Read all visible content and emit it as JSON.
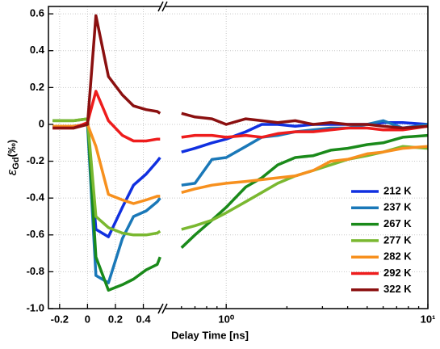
{
  "chart_data": {
    "type": "line",
    "xlabel": "Delay Time [ns]",
    "ylabel": {
      "symbol": "ε",
      "subscript": "Gd",
      "unit": "(‰)"
    },
    "xlim": [
      -0.28,
      0.53
    ],
    "xscale": "linear",
    "xticks": [
      -0.2,
      0,
      0.2,
      0.4
    ],
    "x2lim": [
      0.5,
      10
    ],
    "x2scale": "log",
    "x2ticks": [
      {
        "value": 1,
        "label": "10⁰"
      },
      {
        "value": 10,
        "label": "10¹"
      }
    ],
    "x2minorticks": [
      0.6,
      0.7,
      0.8,
      0.9,
      2,
      3,
      4,
      5,
      6,
      7,
      8,
      9
    ],
    "ylim": [
      -1,
      0.64
    ],
    "yticks": [
      0.6,
      0.4,
      0.2,
      0,
      -0.2,
      -0.4,
      -0.6,
      -0.8,
      {
        "value": -1,
        "label": "-1.0"
      }
    ],
    "grid": true,
    "legend": "lower right",
    "x": [
      -0.25,
      -0.1,
      0,
      0.06,
      0.15,
      0.25,
      0.33,
      0.42,
      0.5,
      0.52,
      0.6,
      0.7,
      0.85,
      1.0,
      1.25,
      1.5,
      1.8,
      2.2,
      2.7,
      3.3,
      4.0,
      5.0,
      6.0,
      7.5,
      10
    ],
    "series": [
      {
        "name": "212 K",
        "color": "#1030e0",
        "values": [
          -0.01,
          -0.01,
          0.0,
          -0.57,
          -0.61,
          -0.45,
          -0.33,
          -0.27,
          -0.2,
          -0.18,
          -0.15,
          -0.13,
          -0.1,
          -0.08,
          -0.04,
          0.0,
          0.0,
          -0.01,
          0.0,
          0.0,
          0.0,
          0.0,
          0.01,
          0.01,
          0.0
        ]
      },
      {
        "name": "237 K",
        "color": "#1a78b8",
        "values": [
          -0.01,
          -0.01,
          0.0,
          -0.82,
          -0.86,
          -0.62,
          -0.5,
          -0.47,
          -0.42,
          -0.4,
          -0.33,
          -0.32,
          -0.19,
          -0.18,
          -0.12,
          -0.07,
          -0.06,
          -0.04,
          -0.03,
          -0.02,
          -0.02,
          0.0,
          0.02,
          -0.02,
          0.0
        ]
      },
      {
        "name": "267 K",
        "color": "#1a8a1a",
        "values": [
          0.02,
          0.02,
          0.03,
          -0.72,
          -0.9,
          -0.87,
          -0.84,
          -0.79,
          -0.76,
          -0.72,
          -0.67,
          -0.6,
          -0.52,
          -0.45,
          -0.34,
          -0.29,
          -0.22,
          -0.18,
          -0.17,
          -0.14,
          -0.13,
          -0.11,
          -0.1,
          -0.07,
          -0.06
        ]
      },
      {
        "name": "277 K",
        "color": "#7ab830",
        "values": [
          0.02,
          0.02,
          0.03,
          -0.5,
          -0.56,
          -0.59,
          -0.6,
          -0.6,
          -0.59,
          -0.58,
          -0.57,
          -0.55,
          -0.52,
          -0.48,
          -0.42,
          -0.37,
          -0.32,
          -0.28,
          -0.25,
          -0.22,
          -0.19,
          -0.17,
          -0.15,
          -0.12,
          -0.13
        ]
      },
      {
        "name": "282 K",
        "color": "#f7901e",
        "values": [
          -0.01,
          -0.01,
          0.0,
          -0.12,
          -0.38,
          -0.41,
          -0.43,
          -0.41,
          -0.39,
          -0.39,
          -0.37,
          -0.35,
          -0.33,
          -0.32,
          -0.31,
          -0.3,
          -0.29,
          -0.28,
          -0.25,
          -0.2,
          -0.19,
          -0.16,
          -0.15,
          -0.13,
          -0.12
        ]
      },
      {
        "name": "292 K",
        "color": "#ee1c1c",
        "values": [
          -0.02,
          -0.02,
          0.01,
          0.18,
          0.02,
          -0.06,
          -0.09,
          -0.09,
          -0.08,
          -0.08,
          -0.07,
          -0.06,
          -0.06,
          -0.07,
          -0.06,
          -0.07,
          -0.05,
          -0.04,
          -0.04,
          -0.03,
          -0.02,
          -0.02,
          -0.03,
          -0.03,
          -0.01
        ]
      },
      {
        "name": "322 K",
        "color": "#8b1010",
        "values": [
          -0.02,
          -0.02,
          0.0,
          0.59,
          0.26,
          0.16,
          0.1,
          0.08,
          0.07,
          0.06,
          0.06,
          0.04,
          0.03,
          0.0,
          0.03,
          0.02,
          0.01,
          0.02,
          0.0,
          0.01,
          0.0,
          0.0,
          -0.01,
          -0.02,
          -0.01
        ]
      }
    ]
  }
}
